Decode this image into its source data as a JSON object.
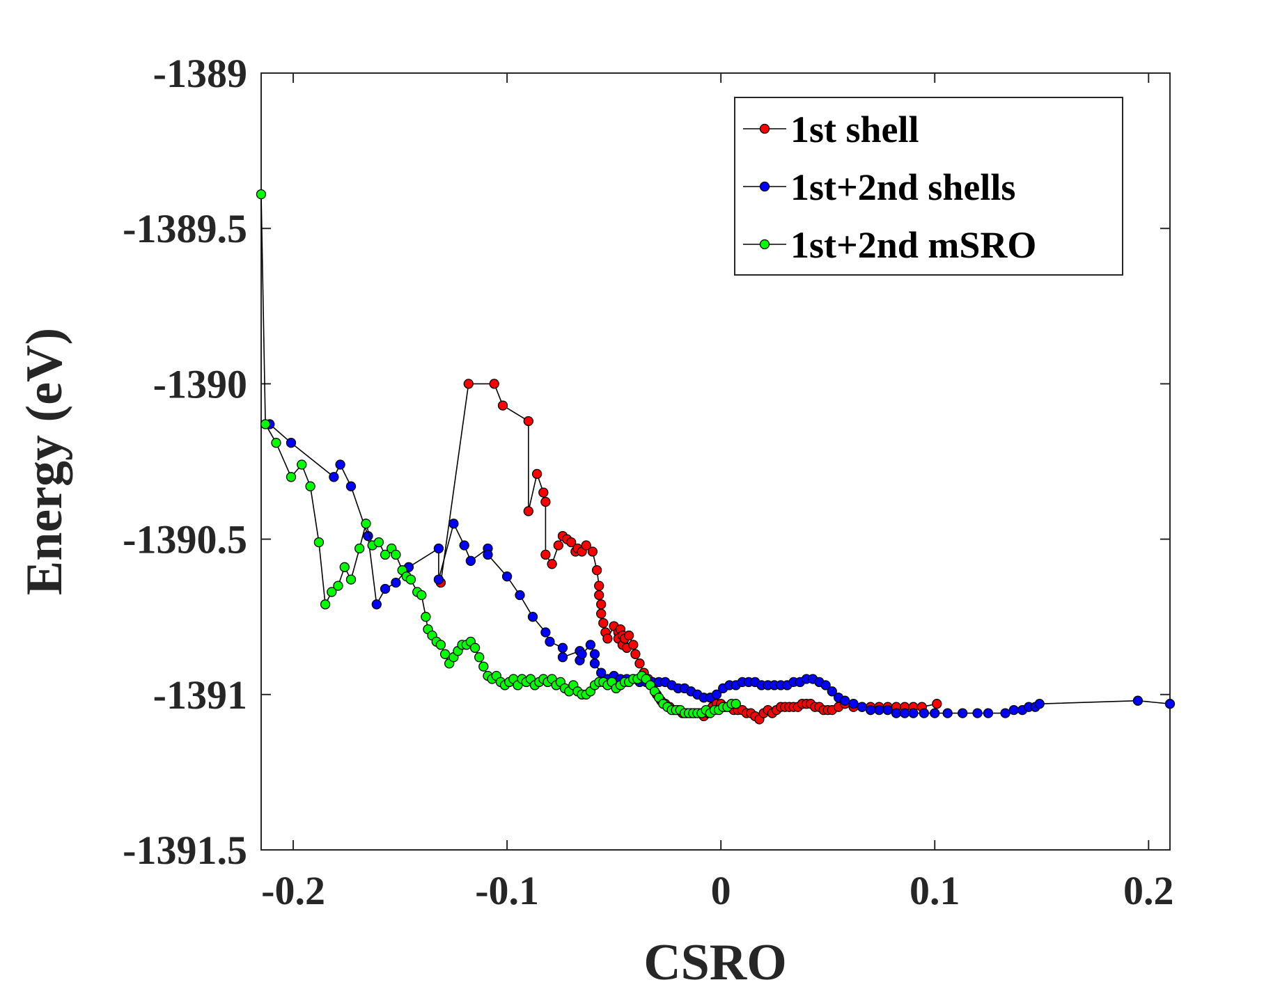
{
  "chart_data": {
    "type": "line",
    "title": "",
    "xlabel": "CSRO",
    "ylabel": "Energy (eV)",
    "xlim": [
      -0.215,
      0.21
    ],
    "ylim": [
      -1391.5,
      -1389
    ],
    "x_ticks": [
      -0.2,
      -0.1,
      0,
      0.1,
      0.2
    ],
    "x_tick_labels": [
      "-0.2",
      "-0.1",
      "0",
      "0.1",
      "0.2"
    ],
    "y_ticks": [
      -1389,
      -1389.5,
      -1390,
      -1390.5,
      -1391,
      -1391.5
    ],
    "y_tick_labels": [
      "-1389",
      "-1389.5",
      "-1390",
      "-1390.5",
      "-1391",
      "-1391.5"
    ],
    "grid": false,
    "legend_position": "top-right",
    "line_color": "#000000",
    "series": [
      {
        "name": "1st shell",
        "color": "#ff0000",
        "x": [
          -0.131,
          -0.118,
          -0.106,
          -0.102,
          -0.09,
          -0.09,
          -0.086,
          -0.083,
          -0.082,
          -0.082,
          -0.079,
          -0.076,
          -0.074,
          -0.072,
          -0.07,
          -0.068,
          -0.067,
          -0.065,
          -0.063,
          -0.06,
          -0.058,
          -0.057,
          -0.057,
          -0.056,
          -0.056,
          -0.055,
          -0.054,
          -0.053,
          -0.05,
          -0.048,
          -0.048,
          -0.047,
          -0.046,
          -0.046,
          -0.045,
          -0.044,
          -0.043,
          -0.041,
          -0.04,
          -0.038,
          -0.036,
          -0.034,
          -0.032,
          -0.03,
          -0.028,
          -0.026,
          -0.024,
          -0.022,
          -0.02,
          -0.018,
          -0.016,
          -0.014,
          -0.012,
          -0.01,
          -0.008,
          -0.006,
          -0.005,
          -0.004,
          -0.002,
          0.0,
          0.002,
          0.004,
          0.006,
          0.008,
          0.01,
          0.012,
          0.014,
          0.016,
          0.018,
          0.02,
          0.022,
          0.024,
          0.026,
          0.028,
          0.03,
          0.032,
          0.034,
          0.036,
          0.038,
          0.04,
          0.042,
          0.044,
          0.046,
          0.048,
          0.05,
          0.052,
          0.055,
          0.058,
          0.062,
          0.066,
          0.07,
          0.074,
          0.078,
          0.082,
          0.086,
          0.09,
          0.094,
          0.101
        ],
        "y": [
          -1390.64,
          -1390.0,
          -1390.0,
          -1390.07,
          -1390.12,
          -1390.41,
          -1390.29,
          -1390.35,
          -1390.38,
          -1390.55,
          -1390.58,
          -1390.52,
          -1390.49,
          -1390.5,
          -1390.51,
          -1390.54,
          -1390.53,
          -1390.54,
          -1390.52,
          -1390.54,
          -1390.6,
          -1390.65,
          -1390.68,
          -1390.71,
          -1390.74,
          -1390.77,
          -1390.8,
          -1390.82,
          -1390.78,
          -1390.8,
          -1390.82,
          -1390.79,
          -1390.81,
          -1390.84,
          -1390.82,
          -1390.85,
          -1390.81,
          -1390.84,
          -1390.87,
          -1390.9,
          -1390.93,
          -1390.95,
          -1390.97,
          -1391.0,
          -1391.02,
          -1391.03,
          -1391.04,
          -1391.05,
          -1391.05,
          -1391.06,
          -1391.06,
          -1391.06,
          -1391.06,
          -1391.06,
          -1391.07,
          -1391.06,
          -1391.05,
          -1391.04,
          -1391.03,
          -1391.03,
          -1391.04,
          -1391.04,
          -1391.05,
          -1391.05,
          -1391.05,
          -1391.06,
          -1391.06,
          -1391.07,
          -1391.08,
          -1391.06,
          -1391.05,
          -1391.06,
          -1391.05,
          -1391.04,
          -1391.04,
          -1391.04,
          -1391.04,
          -1391.04,
          -1391.03,
          -1391.03,
          -1391.03,
          -1391.04,
          -1391.04,
          -1391.05,
          -1391.05,
          -1391.05,
          -1391.04,
          -1391.03,
          -1391.04,
          -1391.04,
          -1391.04,
          -1391.04,
          -1391.04,
          -1391.04,
          -1391.04,
          -1391.04,
          -1391.04,
          -1391.03
        ]
      },
      {
        "name": "1st+2nd shells",
        "color": "#0000ff",
        "x": [
          -0.211,
          -0.201,
          -0.181,
          -0.178,
          -0.173,
          -0.165,
          -0.161,
          -0.157,
          -0.152,
          -0.146,
          -0.132,
          -0.132,
          -0.125,
          -0.12,
          -0.117,
          -0.109,
          -0.109,
          -0.1,
          -0.094,
          -0.088,
          -0.082,
          -0.08,
          -0.074,
          -0.074,
          -0.066,
          -0.066,
          -0.065,
          -0.061,
          -0.059,
          -0.059,
          -0.056,
          -0.053,
          -0.05,
          -0.047,
          -0.044,
          -0.041,
          -0.038,
          -0.035,
          -0.032,
          -0.029,
          -0.026,
          -0.023,
          -0.02,
          -0.017,
          -0.014,
          -0.011,
          -0.008,
          -0.005,
          -0.002,
          0.001,
          0.004,
          0.007,
          0.01,
          0.013,
          0.016,
          0.019,
          0.022,
          0.025,
          0.028,
          0.031,
          0.034,
          0.037,
          0.04,
          0.043,
          0.046,
          0.049,
          0.052,
          0.055,
          0.058,
          0.062,
          0.066,
          0.07,
          0.074,
          0.078,
          0.082,
          0.086,
          0.09,
          0.095,
          0.1,
          0.106,
          0.113,
          0.12,
          0.125,
          0.133,
          0.137,
          0.141,
          0.144,
          0.147,
          0.149,
          0.195,
          0.21
        ],
        "y": [
          -1390.13,
          -1390.19,
          -1390.3,
          -1390.26,
          -1390.33,
          -1390.49,
          -1390.71,
          -1390.66,
          -1390.64,
          -1390.59,
          -1390.53,
          -1390.63,
          -1390.45,
          -1390.52,
          -1390.57,
          -1390.53,
          -1390.55,
          -1390.62,
          -1390.68,
          -1390.75,
          -1390.8,
          -1390.83,
          -1390.85,
          -1390.88,
          -1390.86,
          -1390.89,
          -1390.87,
          -1390.84,
          -1390.87,
          -1390.9,
          -1390.93,
          -1390.95,
          -1390.94,
          -1390.95,
          -1390.95,
          -1390.95,
          -1390.96,
          -1390.96,
          -1390.96,
          -1390.96,
          -1390.96,
          -1390.97,
          -1390.98,
          -1390.98,
          -1390.99,
          -1391.0,
          -1391.01,
          -1391.01,
          -1391.0,
          -1390.98,
          -1390.97,
          -1390.97,
          -1390.96,
          -1390.96,
          -1390.96,
          -1390.97,
          -1390.97,
          -1390.97,
          -1390.97,
          -1390.97,
          -1390.96,
          -1390.96,
          -1390.95,
          -1390.95,
          -1390.96,
          -1390.97,
          -1390.99,
          -1391.01,
          -1391.02,
          -1391.03,
          -1391.04,
          -1391.05,
          -1391.05,
          -1391.05,
          -1391.06,
          -1391.06,
          -1391.06,
          -1391.06,
          -1391.06,
          -1391.06,
          -1391.06,
          -1391.06,
          -1391.06,
          -1391.06,
          -1391.05,
          -1391.05,
          -1391.04,
          -1391.04,
          -1391.03,
          -1391.02,
          -1391.03
        ]
      },
      {
        "name": "1st+2nd mSRO",
        "color": "#00ff00",
        "x": [
          -0.215,
          -0.213,
          -0.208,
          -0.201,
          -0.196,
          -0.192,
          -0.188,
          -0.185,
          -0.182,
          -0.179,
          -0.176,
          -0.173,
          -0.169,
          -0.166,
          -0.163,
          -0.16,
          -0.157,
          -0.154,
          -0.152,
          -0.149,
          -0.147,
          -0.145,
          -0.142,
          -0.14,
          -0.138,
          -0.137,
          -0.135,
          -0.133,
          -0.131,
          -0.129,
          -0.127,
          -0.125,
          -0.123,
          -0.121,
          -0.119,
          -0.117,
          -0.115,
          -0.113,
          -0.111,
          -0.109,
          -0.107,
          -0.105,
          -0.103,
          -0.101,
          -0.099,
          -0.097,
          -0.095,
          -0.093,
          -0.091,
          -0.089,
          -0.087,
          -0.085,
          -0.083,
          -0.081,
          -0.079,
          -0.077,
          -0.075,
          -0.073,
          -0.071,
          -0.069,
          -0.067,
          -0.065,
          -0.063,
          -0.061,
          -0.059,
          -0.057,
          -0.055,
          -0.053,
          -0.051,
          -0.049,
          -0.047,
          -0.045,
          -0.043,
          -0.041,
          -0.039,
          -0.037,
          -0.035,
          -0.033,
          -0.031,
          -0.029,
          -0.027,
          -0.025,
          -0.023,
          -0.021,
          -0.019,
          -0.017,
          -0.015,
          -0.013,
          -0.011,
          -0.009,
          -0.007,
          -0.005,
          -0.003,
          -0.001,
          0.001,
          0.003,
          0.005,
          0.007
        ],
        "y": [
          -1389.39,
          -1390.13,
          -1390.19,
          -1390.3,
          -1390.26,
          -1390.33,
          -1390.51,
          -1390.71,
          -1390.67,
          -1390.65,
          -1390.59,
          -1390.63,
          -1390.53,
          -1390.45,
          -1390.52,
          -1390.51,
          -1390.55,
          -1390.53,
          -1390.55,
          -1390.6,
          -1390.62,
          -1390.63,
          -1390.67,
          -1390.68,
          -1390.75,
          -1390.79,
          -1390.81,
          -1390.83,
          -1390.84,
          -1390.87,
          -1390.9,
          -1390.88,
          -1390.86,
          -1390.84,
          -1390.84,
          -1390.83,
          -1390.85,
          -1390.88,
          -1390.91,
          -1390.94,
          -1390.95,
          -1390.94,
          -1390.96,
          -1390.97,
          -1390.96,
          -1390.95,
          -1390.97,
          -1390.95,
          -1390.96,
          -1390.95,
          -1390.97,
          -1390.96,
          -1390.95,
          -1390.96,
          -1390.95,
          -1390.97,
          -1390.96,
          -1390.98,
          -1390.99,
          -1390.97,
          -1390.99,
          -1391.0,
          -1391.0,
          -1390.99,
          -1390.97,
          -1390.96,
          -1390.96,
          -1390.97,
          -1390.96,
          -1390.98,
          -1390.97,
          -1390.96,
          -1390.96,
          -1390.95,
          -1390.95,
          -1390.94,
          -1390.95,
          -1390.97,
          -1390.99,
          -1391.01,
          -1391.03,
          -1391.04,
          -1391.05,
          -1391.05,
          -1391.05,
          -1391.06,
          -1391.06,
          -1391.06,
          -1391.06,
          -1391.06,
          -1391.05,
          -1391.06,
          -1391.05,
          -1391.05,
          -1391.04,
          -1391.04,
          -1391.03,
          -1391.03
        ]
      }
    ]
  }
}
